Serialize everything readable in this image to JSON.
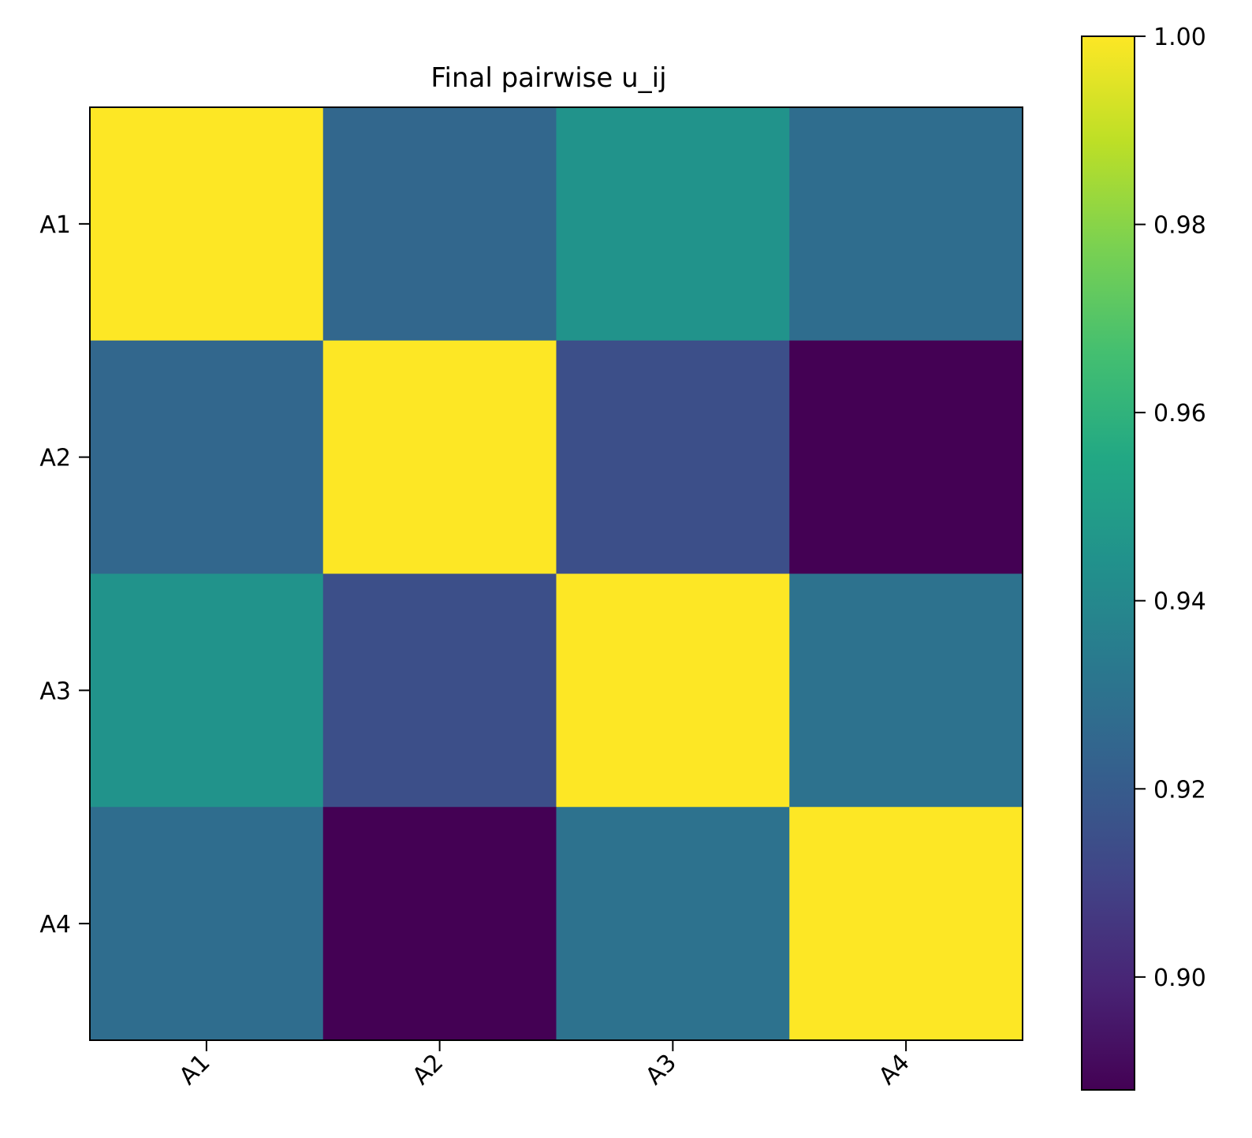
{
  "chart_data": {
    "type": "heatmap",
    "title": "Final pairwise u_ij",
    "row_labels": [
      "A1",
      "A2",
      "A3",
      "A4"
    ],
    "col_labels": [
      "A1",
      "A2",
      "A3",
      "A4"
    ],
    "values": [
      [
        1.0,
        0.925,
        0.945,
        0.928
      ],
      [
        0.925,
        1.0,
        0.915,
        0.888
      ],
      [
        0.945,
        0.915,
        1.0,
        0.93
      ],
      [
        0.928,
        0.888,
        0.93,
        1.0
      ]
    ],
    "colormap": "viridis",
    "colorbar": {
      "range": [
        0.888,
        1.0
      ],
      "ticks": [
        0.9,
        0.92,
        0.94,
        0.96,
        0.98,
        1.0
      ],
      "tick_labels": [
        "0.90",
        "0.92",
        "0.94",
        "0.96",
        "0.98",
        "1.00"
      ]
    },
    "xlabel": "",
    "ylabel": ""
  }
}
